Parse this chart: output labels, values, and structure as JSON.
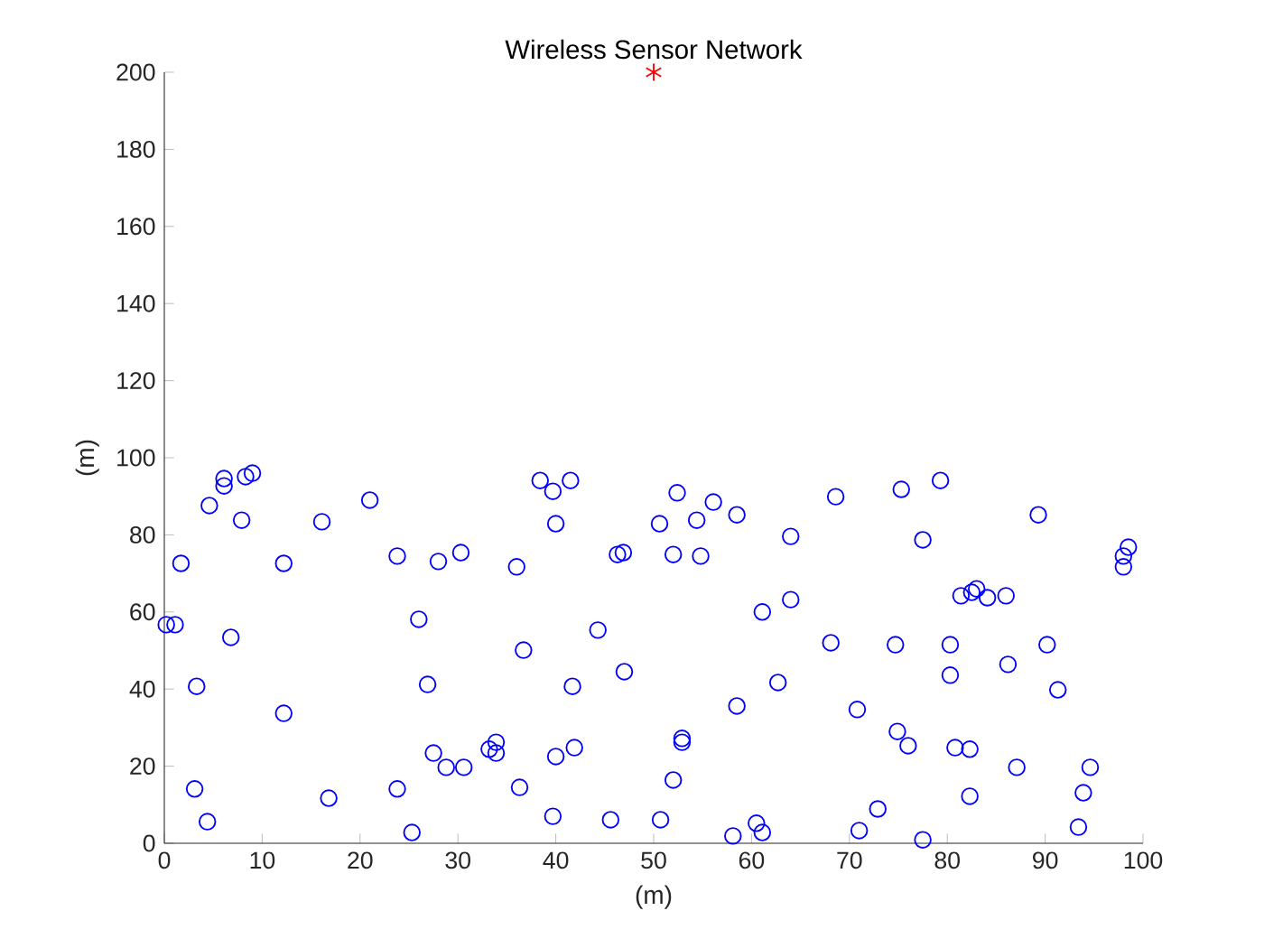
{
  "chart_data": {
    "type": "scatter",
    "title": "Wireless Sensor Network",
    "xlabel": "(m)",
    "ylabel": "(m)",
    "xlim": [
      0,
      100
    ],
    "ylim": [
      0,
      200
    ],
    "xticks": [
      0,
      10,
      20,
      30,
      40,
      50,
      60,
      70,
      80,
      90,
      100
    ],
    "yticks": [
      0,
      20,
      40,
      60,
      80,
      100,
      120,
      140,
      160,
      180,
      200
    ],
    "grid": false,
    "series": [
      {
        "color": "#0000ff",
        "marker": "circle",
        "x": [
          0.2,
          1.1,
          1.7,
          3.3,
          3.1,
          4.4,
          4.6,
          6.1,
          6.1,
          6.8,
          7.9,
          8.3,
          9.0,
          12.2,
          12.2,
          16.1,
          16.8,
          21.0,
          23.8,
          23.8,
          25.3,
          26.0,
          26.9,
          27.5,
          28.0,
          28.8,
          30.3,
          30.6,
          33.2,
          33.9,
          33.9,
          36.0,
          36.3,
          36.7,
          38.4,
          39.7,
          39.7,
          40.0,
          40.0,
          41.5,
          41.7,
          41.9,
          44.3,
          45.6,
          46.3,
          46.9,
          47.0,
          50.6,
          50.7,
          52.0,
          52.0,
          52.4,
          52.9,
          52.9,
          54.4,
          54.8,
          56.1,
          58.1,
          58.5,
          58.5,
          60.5,
          61.1,
          61.1,
          62.7,
          64.0,
          64.0,
          68.1,
          68.6,
          70.8,
          71.0,
          72.9,
          74.7,
          74.9,
          75.3,
          76.0,
          77.5,
          77.5,
          79.3,
          80.3,
          80.3,
          80.8,
          81.4,
          82.3,
          82.3,
          82.5,
          83.0,
          84.1,
          86.0,
          86.2,
          87.1,
          89.3,
          90.2,
          91.3,
          93.4,
          93.9,
          94.6,
          98.0,
          98.0,
          98.5
        ],
        "values": [
          56.7,
          56.7,
          72.6,
          40.7,
          14.1,
          5.6,
          87.6,
          92.7,
          94.6,
          53.4,
          83.8,
          95.1,
          96.0,
          72.6,
          33.7,
          83.4,
          11.7,
          89.0,
          74.5,
          14.1,
          2.8,
          58.1,
          41.2,
          23.4,
          73.1,
          19.7,
          75.4,
          19.7,
          24.4,
          26.2,
          23.4,
          71.7,
          14.5,
          50.1,
          94.1,
          91.3,
          7.0,
          82.9,
          22.5,
          94.1,
          40.7,
          24.8,
          55.3,
          6.1,
          74.9,
          75.4,
          44.5,
          82.9,
          6.1,
          74.9,
          16.4,
          90.9,
          27.2,
          26.2,
          83.8,
          74.5,
          88.5,
          1.9,
          85.2,
          35.6,
          5.2,
          2.8,
          60.0,
          41.7,
          79.6,
          63.2,
          52.0,
          89.9,
          34.7,
          3.3,
          8.9,
          51.5,
          29.0,
          91.8,
          25.3,
          78.7,
          0.9,
          94.1,
          51.5,
          43.6,
          24.8,
          64.2,
          24.4,
          12.2,
          65.1,
          66.0,
          63.7,
          64.2,
          46.4,
          19.7,
          85.2,
          51.5,
          39.8,
          4.2,
          13.1,
          19.7,
          71.7,
          74.5,
          76.8
        ]
      },
      {
        "color": "#ff0000",
        "marker": "cross",
        "x": [
          50
        ],
        "values": [
          200
        ]
      }
    ]
  }
}
